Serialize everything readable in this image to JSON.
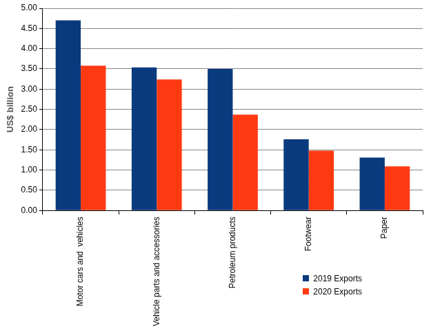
{
  "chart_data": {
    "type": "bar",
    "y_label": "US$ billion",
    "categories": [
      "Motor cars and  vehicles",
      "Vehicle parts and accessories",
      "Petroleum products",
      "Footwear",
      "Paper"
    ],
    "series": [
      {
        "name": "2019 Exports",
        "color": "#0a3a7e",
        "values": [
          4.7,
          3.54,
          3.5,
          1.76,
          1.31
        ]
      },
      {
        "name": "2020 Exports",
        "color": "#ff3a12",
        "values": [
          3.58,
          3.24,
          2.37,
          1.48,
          1.09
        ]
      }
    ],
    "ylim": [
      0,
      5
    ],
    "yticks": [
      {
        "value": 0,
        "label": "0.00"
      },
      {
        "value": 0.5,
        "label": "0.50"
      },
      {
        "value": 1,
        "label": "1.00"
      },
      {
        "value": 1.5,
        "label": "1.50"
      },
      {
        "value": 2,
        "label": "2.00"
      },
      {
        "value": 2.5,
        "label": "2.50"
      },
      {
        "value": 3,
        "label": "3.00"
      },
      {
        "value": 3.5,
        "label": "3.50"
      },
      {
        "value": 4,
        "label": "4.00"
      },
      {
        "value": 4.5,
        "label": "4.50"
      },
      {
        "value": 5,
        "label": "5.00"
      }
    ],
    "grid": true,
    "legend": "lower right"
  }
}
